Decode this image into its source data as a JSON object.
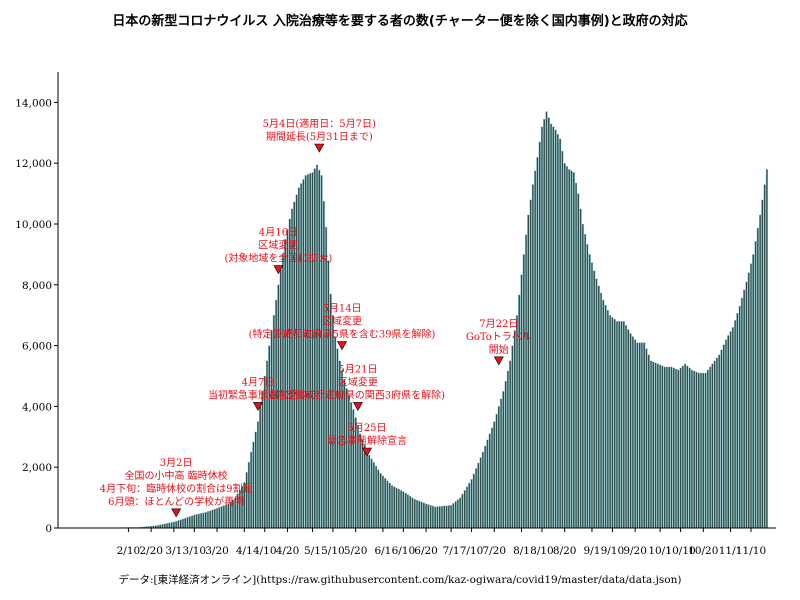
{
  "chart_data": {
    "type": "bar",
    "title": "日本の新型コロナウイルス 入院治療等を要する者の数(チャーター便を除く国内事例)と政府の対応",
    "source": "データ:[東洋経済オンライン](https://raw.githubusercontent.com/kaz-ogiwara/covid19/master/data/data.json)",
    "bar_color": "#2f4f4f",
    "bar_edge_color": "#a9dce3",
    "annotation_color": "#e8101a",
    "marker_color": "#e8101a",
    "x_start_date": "2020-01-16",
    "x_range_dates": [
      "2020-01-10",
      "2020-11-21"
    ],
    "ylim": [
      0,
      15000
    ],
    "yticks": [
      0,
      2000,
      4000,
      6000,
      8000,
      10000,
      12000,
      14000
    ],
    "ytick_labels": [
      "0",
      "2,000",
      "4,000",
      "6,000",
      "8,000",
      "10,000",
      "12,000",
      "14,000"
    ],
    "xticks": [
      {
        "date": "2020-02-10",
        "label": "2/10"
      },
      {
        "date": "2020-02-20",
        "label": "2/20"
      },
      {
        "date": "2020-03-01",
        "label": "3/1"
      },
      {
        "date": "2020-03-10",
        "label": "3/10"
      },
      {
        "date": "2020-03-20",
        "label": "3/20"
      },
      {
        "date": "2020-04-01",
        "label": "4/1"
      },
      {
        "date": "2020-04-10",
        "label": "4/10"
      },
      {
        "date": "2020-04-20",
        "label": "4/20"
      },
      {
        "date": "2020-05-01",
        "label": "5/1"
      },
      {
        "date": "2020-05-10",
        "label": "5/10"
      },
      {
        "date": "2020-05-20",
        "label": "5/20"
      },
      {
        "date": "2020-06-01",
        "label": "6/1"
      },
      {
        "date": "2020-06-10",
        "label": "6/10"
      },
      {
        "date": "2020-06-20",
        "label": "6/20"
      },
      {
        "date": "2020-07-01",
        "label": "7/1"
      },
      {
        "date": "2020-07-10",
        "label": "7/10"
      },
      {
        "date": "2020-07-20",
        "label": "7/20"
      },
      {
        "date": "2020-08-01",
        "label": "8/1"
      },
      {
        "date": "2020-08-10",
        "label": "8/10"
      },
      {
        "date": "2020-08-20",
        "label": "8/20"
      },
      {
        "date": "2020-09-01",
        "label": "9/1"
      },
      {
        "date": "2020-09-10",
        "label": "9/10"
      },
      {
        "date": "2020-09-20",
        "label": "9/20"
      },
      {
        "date": "2020-10-01",
        "label": "10/1"
      },
      {
        "date": "2020-10-10",
        "label": "10/10"
      },
      {
        "date": "2020-10-20",
        "label": "10/20"
      },
      {
        "date": "2020-11-01",
        "label": "11/1"
      },
      {
        "date": "2020-11-10",
        "label": "11/10"
      }
    ],
    "series_keypoints": [
      [
        "2020-01-16",
        1
      ],
      [
        "2020-01-25",
        3
      ],
      [
        "2020-02-05",
        10
      ],
      [
        "2020-02-15",
        30
      ],
      [
        "2020-02-22",
        80
      ],
      [
        "2020-03-01",
        200
      ],
      [
        "2020-03-05",
        300
      ],
      [
        "2020-03-10",
        430
      ],
      [
        "2020-03-15",
        520
      ],
      [
        "2020-03-20",
        650
      ],
      [
        "2020-03-25",
        800
      ],
      [
        "2020-03-28",
        1000
      ],
      [
        "2020-04-01",
        1500
      ],
      [
        "2020-04-04",
        2500
      ],
      [
        "2020-04-07",
        3500
      ],
      [
        "2020-04-10",
        5000
      ],
      [
        "2020-04-13",
        6500
      ],
      [
        "2020-04-16",
        8000
      ],
      [
        "2020-04-19",
        9500
      ],
      [
        "2020-04-22",
        10500
      ],
      [
        "2020-04-25",
        11200
      ],
      [
        "2020-04-28",
        11600
      ],
      [
        "2020-05-01",
        11700
      ],
      [
        "2020-05-03",
        11950
      ],
      [
        "2020-05-05",
        11600
      ],
      [
        "2020-05-07",
        9900
      ],
      [
        "2020-05-09",
        7700
      ],
      [
        "2020-05-11",
        6300
      ],
      [
        "2020-05-13",
        5500
      ],
      [
        "2020-05-16",
        4600
      ],
      [
        "2020-05-19",
        3900
      ],
      [
        "2020-05-22",
        3100
      ],
      [
        "2020-05-26",
        2400
      ],
      [
        "2020-05-31",
        1800
      ],
      [
        "2020-06-05",
        1400
      ],
      [
        "2020-06-10",
        1200
      ],
      [
        "2020-06-15",
        950
      ],
      [
        "2020-06-20",
        800
      ],
      [
        "2020-06-24",
        700
      ],
      [
        "2020-07-01",
        750
      ],
      [
        "2020-07-05",
        1000
      ],
      [
        "2020-07-10",
        1600
      ],
      [
        "2020-07-15",
        2500
      ],
      [
        "2020-07-20",
        3500
      ],
      [
        "2020-07-24",
        4500
      ],
      [
        "2020-07-27",
        5500
      ],
      [
        "2020-07-30",
        7000
      ],
      [
        "2020-08-02",
        9000
      ],
      [
        "2020-08-04",
        10300
      ],
      [
        "2020-08-06",
        11300
      ],
      [
        "2020-08-08",
        12200
      ],
      [
        "2020-08-10",
        13200
      ],
      [
        "2020-08-12",
        13700
      ],
      [
        "2020-08-14",
        13300
      ],
      [
        "2020-08-16",
        13100
      ],
      [
        "2020-08-18",
        12800
      ],
      [
        "2020-08-20",
        12000
      ],
      [
        "2020-08-22",
        11800
      ],
      [
        "2020-08-24",
        11700
      ],
      [
        "2020-08-26",
        11000
      ],
      [
        "2020-08-28",
        10000
      ],
      [
        "2020-08-31",
        9000
      ],
      [
        "2020-09-03",
        8200
      ],
      [
        "2020-09-06",
        7500
      ],
      [
        "2020-09-09",
        7000
      ],
      [
        "2020-09-12",
        6800
      ],
      [
        "2020-09-15",
        6800
      ],
      [
        "2020-09-18",
        6400
      ],
      [
        "2020-09-21",
        6100
      ],
      [
        "2020-09-24",
        6100
      ],
      [
        "2020-09-27",
        5500
      ],
      [
        "2020-09-30",
        5400
      ],
      [
        "2020-10-03",
        5300
      ],
      [
        "2020-10-06",
        5300
      ],
      [
        "2020-10-09",
        5200
      ],
      [
        "2020-10-12",
        5400
      ],
      [
        "2020-10-15",
        5200
      ],
      [
        "2020-10-18",
        5100
      ],
      [
        "2020-10-21",
        5100
      ],
      [
        "2020-10-24",
        5400
      ],
      [
        "2020-10-27",
        5700
      ],
      [
        "2020-10-30",
        6200
      ],
      [
        "2020-11-02",
        6600
      ],
      [
        "2020-11-05",
        7300
      ],
      [
        "2020-11-08",
        8100
      ],
      [
        "2020-11-11",
        9000
      ],
      [
        "2020-11-14",
        10300
      ],
      [
        "2020-11-17",
        11800
      ]
    ],
    "annotations": [
      {
        "date": "2020-03-02",
        "y": 500,
        "text": [
          "3月2日",
          "全国の小中高 臨時休校",
          "4月下旬：臨時休校の割合は9割超",
          "6月頭：ほとんどの学校が再開"
        ]
      },
      {
        "date": "2020-04-07",
        "y": 4000,
        "text": [
          "4月7日",
          "当初緊急事態宣言発令"
        ]
      },
      {
        "date": "2020-04-16",
        "y": 8500,
        "text": [
          "4月16日",
          "区域変更",
          "(対象地域を全国に拡大)"
        ]
      },
      {
        "date": "2020-05-04",
        "y": 12500,
        "text": [
          "5月4日(適用日：5月7日)",
          "期間延長(5月31日まで)"
        ]
      },
      {
        "date": "2020-05-14",
        "y": 6000,
        "text": [
          "5月14日",
          "区域変更",
          "(特定警戒都道府県5県を含む39県を解除)"
        ]
      },
      {
        "date": "2020-05-21",
        "y": 4000,
        "text": [
          "5月21日",
          "区域変更",
          "(特定警戒都道府県の関西3府県を解除)"
        ]
      },
      {
        "date": "2020-05-25",
        "y": 2500,
        "text": [
          "5月25日",
          "緊急事態解除宣言"
        ]
      },
      {
        "date": "2020-07-22",
        "y": 5500,
        "text": [
          "7月22日",
          "GoToトラベル",
          "開始"
        ]
      }
    ]
  }
}
